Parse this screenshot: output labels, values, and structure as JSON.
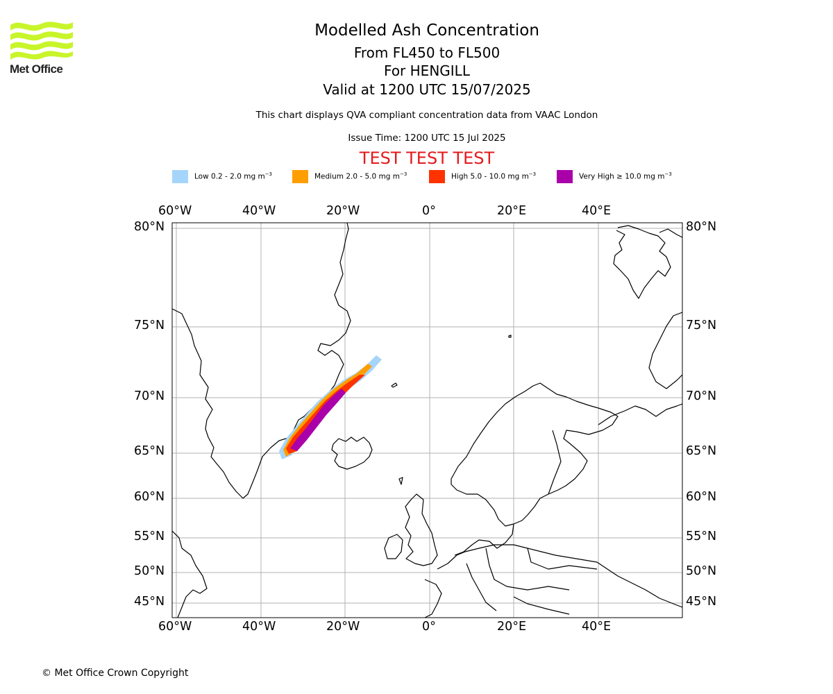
{
  "header": {
    "logo_text": "Met Office",
    "title": "Modelled Ash Concentration",
    "subtitle_levels": "From FL450 to FL500",
    "subtitle_volcano": "For HENGILL",
    "subtitle_valid": "Valid at 1200 UTC 15/07/2025",
    "description": "This chart displays QVA compliant concentration data from VAAC London",
    "issue_time": "Issue Time: 1200 UTC 15 Jul 2025",
    "test_banner": "TEST TEST TEST"
  },
  "legend": [
    {
      "label": "Low 0.2 - 2.0 mg m",
      "unit_exp": "−3",
      "color": "#a6d5fb"
    },
    {
      "label": "Medium 2.0 - 5.0 mg m",
      "unit_exp": "−3",
      "color": "#ff9e00"
    },
    {
      "label": "High 5.0 - 10.0 mg m",
      "unit_exp": "−3",
      "color": "#ff3200"
    },
    {
      "label": "Very High  ≥  10.0 mg m",
      "unit_exp": "−3",
      "color": "#aa00aa"
    }
  ],
  "map": {
    "lon_ticks": [
      "60°W",
      "40°W",
      "20°W",
      "0°",
      "20°E",
      "40°E"
    ],
    "lat_ticks": [
      "80°N",
      "75°N",
      "70°N",
      "65°N",
      "60°N",
      "55°N",
      "50°N",
      "45°N"
    ],
    "gridlines": true,
    "grid_color": "#b0b0b0",
    "coast_color": "#000000"
  },
  "footer": {
    "copyright": "© Met Office Crown Copyright"
  }
}
